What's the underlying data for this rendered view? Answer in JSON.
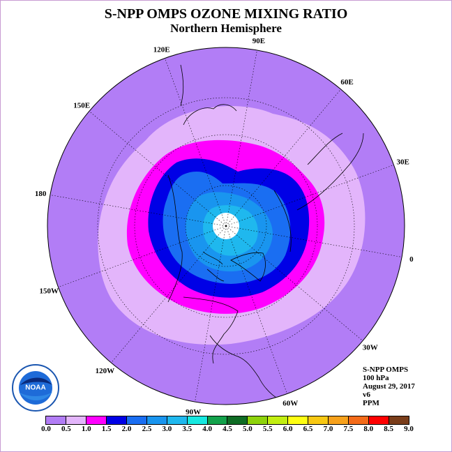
{
  "title": "S-NPP OMPS OZONE MIXING RATIO",
  "subtitle": "Northern Hemisphere",
  "longitude_labels": [
    "90E",
    "60E",
    "30E",
    "0",
    "30W",
    "60W",
    "90W",
    "120W",
    "150W",
    "180",
    "150E",
    "120E"
  ],
  "info": {
    "instrument": "S-NPP OMPS",
    "level": "100 hPa",
    "date": "August 29, 2017",
    "version": "v6",
    "units": "PPM"
  },
  "colorbar": {
    "ticks": [
      "0.0",
      "0.5",
      "1.0",
      "1.5",
      "2.0",
      "2.5",
      "3.0",
      "3.5",
      "4.0",
      "4.5",
      "5.0",
      "5.5",
      "6.0",
      "6.5",
      "7.0",
      "7.5",
      "8.0",
      "8.5",
      "9.0"
    ],
    "colors": [
      "#b27df6",
      "#e3b5fb",
      "#ff00ff",
      "#0000e6",
      "#1a6ef2",
      "#1995ef",
      "#1fb8ee",
      "#16e8e0",
      "#13a24b",
      "#0e6c24",
      "#8ed30b",
      "#c2ee11",
      "#ffff13",
      "#f8c813",
      "#f7a11b",
      "#f46b19",
      "#ff0000",
      "#7a3d1a"
    ]
  },
  "logo_text": "NOAA",
  "fills": {
    "outer": "#b27df6",
    "band_0_5": "#e3b5fb",
    "band_1_0": "#ff00ff",
    "band_1_5": "#0000e6",
    "band_2_0": "#1a6ef2",
    "band_2_5": "#1995ef",
    "band_3_0": "#1fb8ee",
    "pole_nodata": "#ffffff"
  }
}
